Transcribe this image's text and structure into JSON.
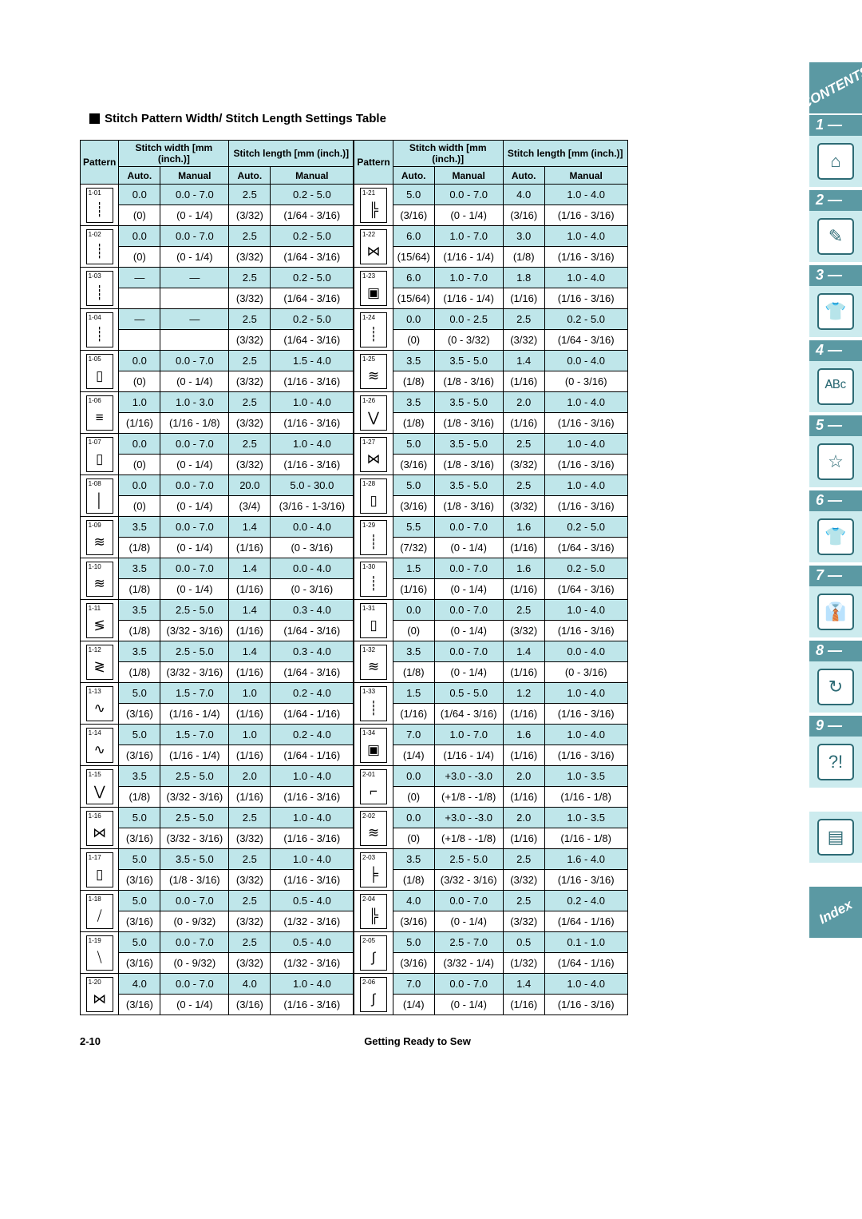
{
  "title": "Stitch Pattern Width/ Stitch Length Settings Table",
  "footer_left": "2-10",
  "footer_center": "Getting Ready to Sew",
  "headers": {
    "pattern": "Pattern",
    "sw": "Stitch width [mm (inch.)]",
    "sl": "Stitch length [mm (inch.)]",
    "auto": "Auto.",
    "manual": "Manual"
  },
  "sidetabs": {
    "top": "CONTENTS",
    "nums": [
      "1 —",
      "2 —",
      "3 —",
      "4 —",
      "5 —",
      "6 —",
      "7 —",
      "8 —",
      "9 —"
    ],
    "icons": [
      "⌂",
      "✎",
      "👕",
      "ᴬᴮᶜ",
      "☆",
      "👕",
      "👔",
      "↻",
      "?!",
      "▤"
    ],
    "bottom": "Index"
  },
  "left_rows": [
    {
      "id": "1-01",
      "g": "┊",
      "sw_a": "0.0",
      "sw_a_i": "(0)",
      "sw_m": "0.0 - 7.0",
      "sw_m_i": "(0 - 1/4)",
      "sl_a": "2.5",
      "sl_a_i": "(3/32)",
      "sl_m": "0.2 - 5.0",
      "sl_m_i": "(1/64 - 3/16)"
    },
    {
      "id": "1-02",
      "g": "┊",
      "sw_a": "0.0",
      "sw_a_i": "(0)",
      "sw_m": "0.0 - 7.0",
      "sw_m_i": "(0 - 1/4)",
      "sl_a": "2.5",
      "sl_a_i": "(3/32)",
      "sl_m": "0.2 - 5.0",
      "sl_m_i": "(1/64 - 3/16)"
    },
    {
      "id": "1-03",
      "g": "┊",
      "sw_a": "—",
      "sw_a_i": "",
      "sw_m": "—",
      "sw_m_i": "",
      "sl_a": "2.5",
      "sl_a_i": "(3/32)",
      "sl_m": "0.2 - 5.0",
      "sl_m_i": "(1/64 - 3/16)"
    },
    {
      "id": "1-04",
      "g": "┊",
      "sw_a": "—",
      "sw_a_i": "",
      "sw_m": "—",
      "sw_m_i": "",
      "sl_a": "2.5",
      "sl_a_i": "(3/32)",
      "sl_m": "0.2 - 5.0",
      "sl_m_i": "(1/64 - 3/16)"
    },
    {
      "id": "1-05",
      "g": "▯",
      "sw_a": "0.0",
      "sw_a_i": "(0)",
      "sw_m": "0.0 - 7.0",
      "sw_m_i": "(0 - 1/4)",
      "sl_a": "2.5",
      "sl_a_i": "(3/32)",
      "sl_m": "1.5 - 4.0",
      "sl_m_i": "(1/16 - 3/16)"
    },
    {
      "id": "1-06",
      "g": "≡",
      "sw_a": "1.0",
      "sw_a_i": "(1/16)",
      "sw_m": "1.0 - 3.0",
      "sw_m_i": "(1/16 - 1/8)",
      "sl_a": "2.5",
      "sl_a_i": "(3/32)",
      "sl_m": "1.0 - 4.0",
      "sl_m_i": "(1/16 - 3/16)"
    },
    {
      "id": "1-07",
      "g": "▯",
      "sw_a": "0.0",
      "sw_a_i": "(0)",
      "sw_m": "0.0 - 7.0",
      "sw_m_i": "(0 - 1/4)",
      "sl_a": "2.5",
      "sl_a_i": "(3/32)",
      "sl_m": "1.0 - 4.0",
      "sl_m_i": "(1/16 - 3/16)"
    },
    {
      "id": "1-08",
      "g": "│",
      "sw_a": "0.0",
      "sw_a_i": "(0)",
      "sw_m": "0.0 - 7.0",
      "sw_m_i": "(0 - 1/4)",
      "sl_a": "20.0",
      "sl_a_i": "(3/4)",
      "sl_m": "5.0 - 30.0",
      "sl_m_i": "(3/16 - 1-3/16)"
    },
    {
      "id": "1-09",
      "g": "≋",
      "sw_a": "3.5",
      "sw_a_i": "(1/8)",
      "sw_m": "0.0 - 7.0",
      "sw_m_i": "(0 - 1/4)",
      "sl_a": "1.4",
      "sl_a_i": "(1/16)",
      "sl_m": "0.0 - 4.0",
      "sl_m_i": "(0 - 3/16)"
    },
    {
      "id": "1-10",
      "g": "≋",
      "sw_a": "3.5",
      "sw_a_i": "(1/8)",
      "sw_m": "0.0 - 7.0",
      "sw_m_i": "(0 - 1/4)",
      "sl_a": "1.4",
      "sl_a_i": "(1/16)",
      "sl_m": "0.0 - 4.0",
      "sl_m_i": "(0 - 3/16)"
    },
    {
      "id": "1-11",
      "g": "≶",
      "sw_a": "3.5",
      "sw_a_i": "(1/8)",
      "sw_m": "2.5 - 5.0",
      "sw_m_i": "(3/32 - 3/16)",
      "sl_a": "1.4",
      "sl_a_i": "(1/16)",
      "sl_m": "0.3 - 4.0",
      "sl_m_i": "(1/64 - 3/16)"
    },
    {
      "id": "1-12",
      "g": "≷",
      "sw_a": "3.5",
      "sw_a_i": "(1/8)",
      "sw_m": "2.5 - 5.0",
      "sw_m_i": "(3/32 - 3/16)",
      "sl_a": "1.4",
      "sl_a_i": "(1/16)",
      "sl_m": "0.3 - 4.0",
      "sl_m_i": "(1/64 - 3/16)"
    },
    {
      "id": "1-13",
      "g": "∿",
      "sw_a": "5.0",
      "sw_a_i": "(3/16)",
      "sw_m": "1.5 - 7.0",
      "sw_m_i": "(1/16 - 1/4)",
      "sl_a": "1.0",
      "sl_a_i": "(1/16)",
      "sl_m": "0.2 - 4.0",
      "sl_m_i": "(1/64 - 1/16)"
    },
    {
      "id": "1-14",
      "g": "∿",
      "sw_a": "5.0",
      "sw_a_i": "(3/16)",
      "sw_m": "1.5 - 7.0",
      "sw_m_i": "(1/16 - 1/4)",
      "sl_a": "1.0",
      "sl_a_i": "(1/16)",
      "sl_m": "0.2 - 4.0",
      "sl_m_i": "(1/64 - 1/16)"
    },
    {
      "id": "1-15",
      "g": "⋁",
      "sw_a": "3.5",
      "sw_a_i": "(1/8)",
      "sw_m": "2.5 - 5.0",
      "sw_m_i": "(3/32 - 3/16)",
      "sl_a": "2.0",
      "sl_a_i": "(1/16)",
      "sl_m": "1.0 - 4.0",
      "sl_m_i": "(1/16 - 3/16)"
    },
    {
      "id": "1-16",
      "g": "⋈",
      "sw_a": "5.0",
      "sw_a_i": "(3/16)",
      "sw_m": "2.5 - 5.0",
      "sw_m_i": "(3/32 - 3/16)",
      "sl_a": "2.5",
      "sl_a_i": "(3/32)",
      "sl_m": "1.0 - 4.0",
      "sl_m_i": "(1/16 - 3/16)"
    },
    {
      "id": "1-17",
      "g": "▯",
      "sw_a": "5.0",
      "sw_a_i": "(3/16)",
      "sw_m": "3.5 - 5.0",
      "sw_m_i": "(1/8 - 3/16)",
      "sl_a": "2.5",
      "sl_a_i": "(3/32)",
      "sl_m": "1.0 - 4.0",
      "sl_m_i": "(1/16 - 3/16)"
    },
    {
      "id": "1-18",
      "g": "⧸",
      "sw_a": "5.0",
      "sw_a_i": "(3/16)",
      "sw_m": "0.0 - 7.0",
      "sw_m_i": "(0 - 9/32)",
      "sl_a": "2.5",
      "sl_a_i": "(3/32)",
      "sl_m": "0.5 - 4.0",
      "sl_m_i": "(1/32 - 3/16)"
    },
    {
      "id": "1-19",
      "g": "⧹",
      "sw_a": "5.0",
      "sw_a_i": "(3/16)",
      "sw_m": "0.0 - 7.0",
      "sw_m_i": "(0 - 9/32)",
      "sl_a": "2.5",
      "sl_a_i": "(3/32)",
      "sl_m": "0.5 - 4.0",
      "sl_m_i": "(1/32 - 3/16)"
    },
    {
      "id": "1-20",
      "g": "⋈",
      "sw_a": "4.0",
      "sw_a_i": "(3/16)",
      "sw_m": "0.0 - 7.0",
      "sw_m_i": "(0 - 1/4)",
      "sl_a": "4.0",
      "sl_a_i": "(3/16)",
      "sl_m": "1.0 - 4.0",
      "sl_m_i": "(1/16 - 3/16)"
    }
  ],
  "right_rows": [
    {
      "id": "1-21",
      "g": "╠",
      "sw_a": "5.0",
      "sw_a_i": "(3/16)",
      "sw_m": "0.0 - 7.0",
      "sw_m_i": "(0 - 1/4)",
      "sl_a": "4.0",
      "sl_a_i": "(3/16)",
      "sl_m": "1.0 - 4.0",
      "sl_m_i": "(1/16 - 3/16)"
    },
    {
      "id": "1-22",
      "g": "⋈",
      "sw_a": "6.0",
      "sw_a_i": "(15/64)",
      "sw_m": "1.0 - 7.0",
      "sw_m_i": "(1/16 - 1/4)",
      "sl_a": "3.0",
      "sl_a_i": "(1/8)",
      "sl_m": "1.0 - 4.0",
      "sl_m_i": "(1/16 - 3/16)"
    },
    {
      "id": "1-23",
      "g": "▣",
      "sw_a": "6.0",
      "sw_a_i": "(15/64)",
      "sw_m": "1.0 - 7.0",
      "sw_m_i": "(1/16 - 1/4)",
      "sl_a": "1.8",
      "sl_a_i": "(1/16)",
      "sl_m": "1.0 - 4.0",
      "sl_m_i": "(1/16 - 3/16)"
    },
    {
      "id": "1-24",
      "g": "┊",
      "sw_a": "0.0",
      "sw_a_i": "(0)",
      "sw_m": "0.0 - 2.5",
      "sw_m_i": "(0 - 3/32)",
      "sl_a": "2.5",
      "sl_a_i": "(3/32)",
      "sl_m": "0.2 - 5.0",
      "sl_m_i": "(1/64 - 3/16)"
    },
    {
      "id": "1-25",
      "g": "≋",
      "sw_a": "3.5",
      "sw_a_i": "(1/8)",
      "sw_m": "3.5 - 5.0",
      "sw_m_i": "(1/8 - 3/16)",
      "sl_a": "1.4",
      "sl_a_i": "(1/16)",
      "sl_m": "0.0 - 4.0",
      "sl_m_i": "(0 - 3/16)"
    },
    {
      "id": "1-26",
      "g": "⋁",
      "sw_a": "3.5",
      "sw_a_i": "(1/8)",
      "sw_m": "3.5 - 5.0",
      "sw_m_i": "(1/8 - 3/16)",
      "sl_a": "2.0",
      "sl_a_i": "(1/16)",
      "sl_m": "1.0 - 4.0",
      "sl_m_i": "(1/16 - 3/16)"
    },
    {
      "id": "1-27",
      "g": "⋈",
      "sw_a": "5.0",
      "sw_a_i": "(3/16)",
      "sw_m": "3.5 - 5.0",
      "sw_m_i": "(1/8 - 3/16)",
      "sl_a": "2.5",
      "sl_a_i": "(3/32)",
      "sl_m": "1.0 - 4.0",
      "sl_m_i": "(1/16 - 3/16)"
    },
    {
      "id": "1-28",
      "g": "▯",
      "sw_a": "5.0",
      "sw_a_i": "(3/16)",
      "sw_m": "3.5 - 5.0",
      "sw_m_i": "(1/8 - 3/16)",
      "sl_a": "2.5",
      "sl_a_i": "(3/32)",
      "sl_m": "1.0 - 4.0",
      "sl_m_i": "(1/16 - 3/16)"
    },
    {
      "id": "1-29",
      "g": "┊",
      "sw_a": "5.5",
      "sw_a_i": "(7/32)",
      "sw_m": "0.0 - 7.0",
      "sw_m_i": "(0 - 1/4)",
      "sl_a": "1.6",
      "sl_a_i": "(1/16)",
      "sl_m": "0.2 - 5.0",
      "sl_m_i": "(1/64 - 3/16)"
    },
    {
      "id": "1-30",
      "g": "┊",
      "sw_a": "1.5",
      "sw_a_i": "(1/16)",
      "sw_m": "0.0 - 7.0",
      "sw_m_i": "(0 - 1/4)",
      "sl_a": "1.6",
      "sl_a_i": "(1/16)",
      "sl_m": "0.2 - 5.0",
      "sl_m_i": "(1/64 - 3/16)"
    },
    {
      "id": "1-31",
      "g": "▯",
      "sw_a": "0.0",
      "sw_a_i": "(0)",
      "sw_m": "0.0 - 7.0",
      "sw_m_i": "(0 - 1/4)",
      "sl_a": "2.5",
      "sl_a_i": "(3/32)",
      "sl_m": "1.0 - 4.0",
      "sl_m_i": "(1/16 - 3/16)"
    },
    {
      "id": "1-32",
      "g": "≋",
      "sw_a": "3.5",
      "sw_a_i": "(1/8)",
      "sw_m": "0.0 - 7.0",
      "sw_m_i": "(0 - 1/4)",
      "sl_a": "1.4",
      "sl_a_i": "(1/16)",
      "sl_m": "0.0 - 4.0",
      "sl_m_i": "(0 - 3/16)"
    },
    {
      "id": "1-33",
      "g": "┊",
      "sw_a": "1.5",
      "sw_a_i": "(1/16)",
      "sw_m": "0.5 - 5.0",
      "sw_m_i": "(1/64 - 3/16)",
      "sl_a": "1.2",
      "sl_a_i": "(1/16)",
      "sl_m": "1.0 - 4.0",
      "sl_m_i": "(1/16 - 3/16)"
    },
    {
      "id": "1-34",
      "g": "▣",
      "sw_a": "7.0",
      "sw_a_i": "(1/4)",
      "sw_m": "1.0 - 7.0",
      "sw_m_i": "(1/16 - 1/4)",
      "sl_a": "1.6",
      "sl_a_i": "(1/16)",
      "sl_m": "1.0 - 4.0",
      "sl_m_i": "(1/16 - 3/16)"
    },
    {
      "id": "2-01",
      "g": "⌐",
      "sw_a": "0.0",
      "sw_a_i": "(0)",
      "sw_m": "+3.0 - -3.0",
      "sw_m_i": "(+1/8 - -1/8)",
      "sl_a": "2.0",
      "sl_a_i": "(1/16)",
      "sl_m": "1.0 - 3.5",
      "sl_m_i": "(1/16 - 1/8)"
    },
    {
      "id": "2-02",
      "g": "≋",
      "sw_a": "0.0",
      "sw_a_i": "(0)",
      "sw_m": "+3.0 - -3.0",
      "sw_m_i": "(+1/8 - -1/8)",
      "sl_a": "2.0",
      "sl_a_i": "(1/16)",
      "sl_m": "1.0 - 3.5",
      "sl_m_i": "(1/16 - 1/8)"
    },
    {
      "id": "2-03",
      "g": "╞",
      "sw_a": "3.5",
      "sw_a_i": "(1/8)",
      "sw_m": "2.5 - 5.0",
      "sw_m_i": "(3/32 - 3/16)",
      "sl_a": "2.5",
      "sl_a_i": "(3/32)",
      "sl_m": "1.6 - 4.0",
      "sl_m_i": "(1/16 - 3/16)"
    },
    {
      "id": "2-04",
      "g": "╠",
      "sw_a": "4.0",
      "sw_a_i": "(3/16)",
      "sw_m": "0.0 - 7.0",
      "sw_m_i": "(0 - 1/4)",
      "sl_a": "2.5",
      "sl_a_i": "(3/32)",
      "sl_m": "0.2 - 4.0",
      "sl_m_i": "(1/64 - 1/16)"
    },
    {
      "id": "2-05",
      "g": "∫",
      "sw_a": "5.0",
      "sw_a_i": "(3/16)",
      "sw_m": "2.5 - 7.0",
      "sw_m_i": "(3/32 - 1/4)",
      "sl_a": "0.5",
      "sl_a_i": "(1/32)",
      "sl_m": "0.1 - 1.0",
      "sl_m_i": "(1/64 - 1/16)"
    },
    {
      "id": "2-06",
      "g": "∫",
      "sw_a": "7.0",
      "sw_a_i": "(1/4)",
      "sw_m": "0.0 - 7.0",
      "sw_m_i": "(0 - 1/4)",
      "sl_a": "1.4",
      "sl_a_i": "(1/16)",
      "sl_m": "1.0 - 4.0",
      "sl_m_i": "(1/16 - 3/16)"
    }
  ]
}
